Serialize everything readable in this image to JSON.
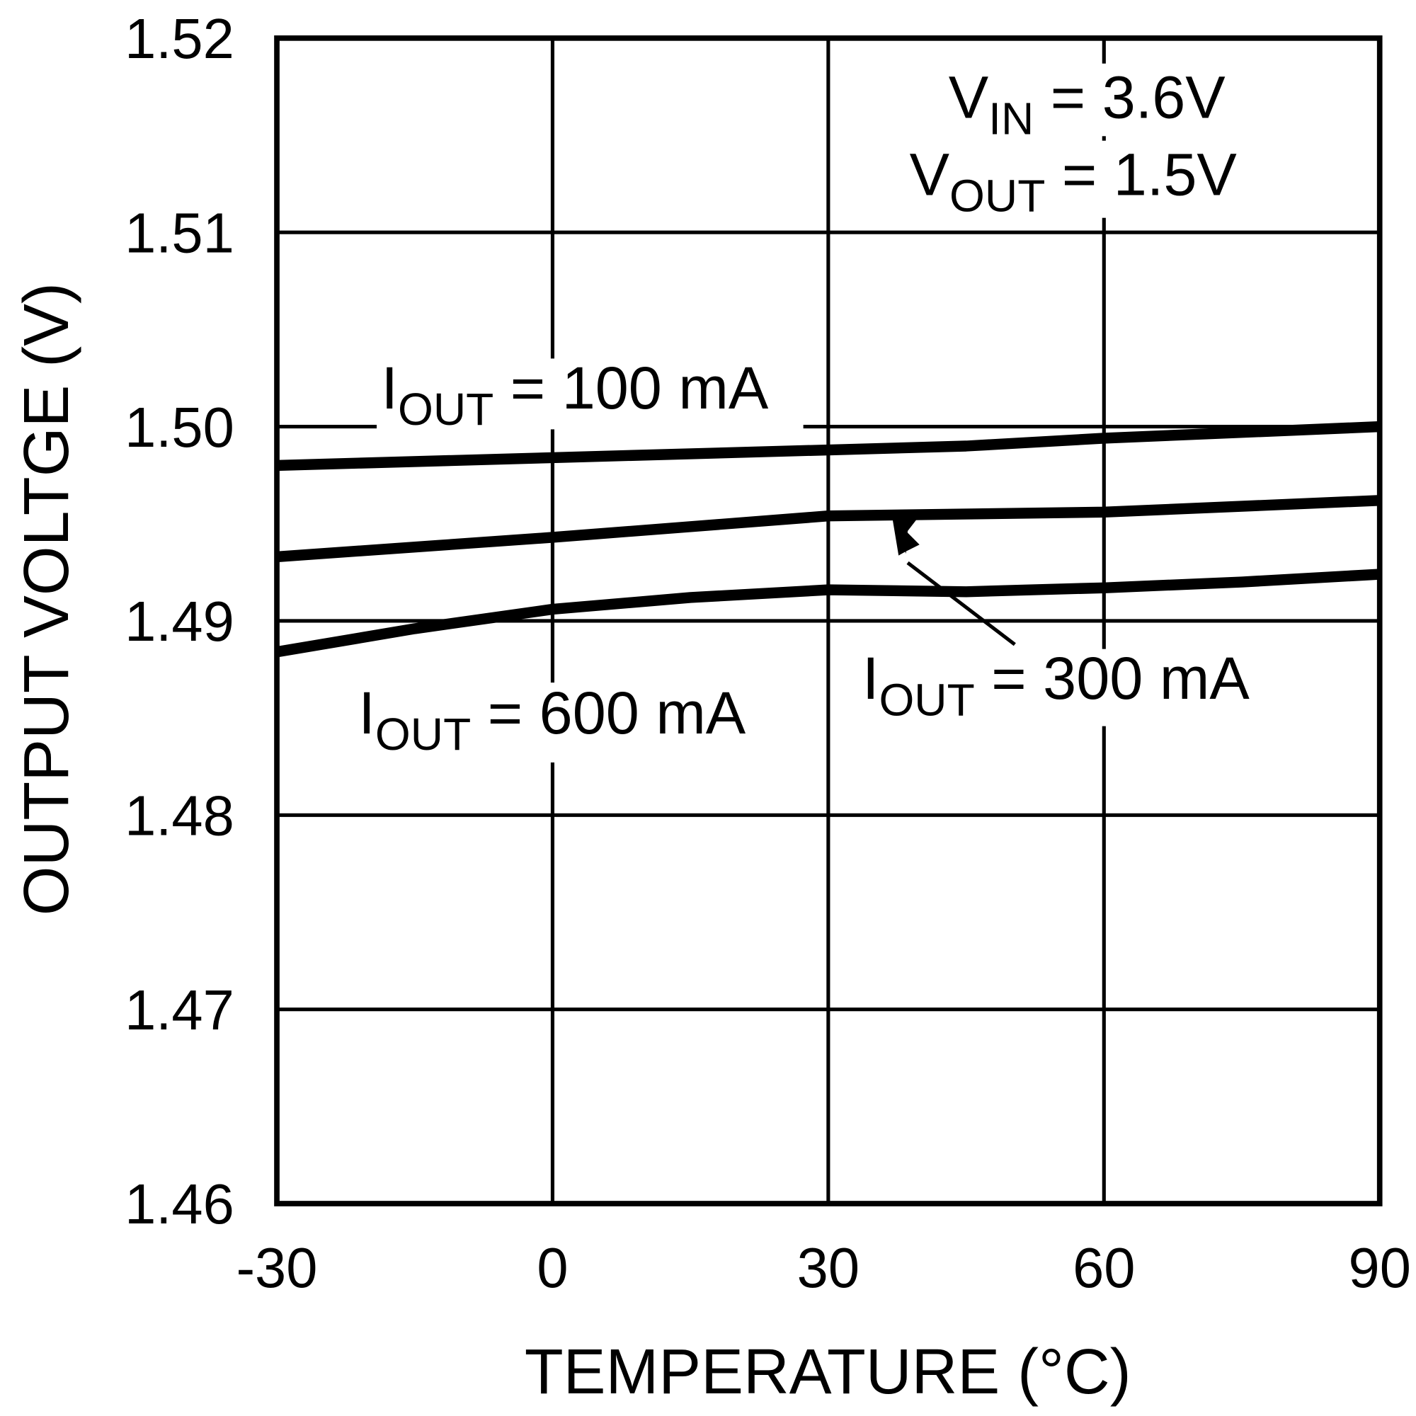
{
  "chart_data": {
    "type": "line",
    "title": "",
    "xlabel": "TEMPERATURE (°C)",
    "ylabel": "OUTPUT VOLTGE (V)",
    "xlim": [
      -30,
      90
    ],
    "ylim": [
      1.46,
      1.52
    ],
    "xticks": [
      "-30",
      "0",
      "30",
      "60",
      "90"
    ],
    "yticks": [
      "1.46",
      "1.47",
      "1.48",
      "1.49",
      "1.50",
      "1.51",
      "1.52"
    ],
    "grid": true,
    "series_color": "#000000",
    "conditions": {
      "vin": {
        "main": "V",
        "sub": "IN",
        "rest": " = 3.6V"
      },
      "vout": {
        "main": "V",
        "sub": "OUT",
        "rest": " = 1.5V"
      }
    },
    "series": [
      {
        "name": "I_OUT = 100 mA",
        "label": {
          "main": "I",
          "sub": "OUT",
          "rest": " = 100 mA"
        },
        "x": [
          -30,
          0,
          30,
          45,
          60,
          90
        ],
        "y": [
          1.498,
          1.4984,
          1.4988,
          1.499,
          1.4994,
          1.5
        ]
      },
      {
        "name": "I_OUT = 300 mA",
        "label": {
          "main": "I",
          "sub": "OUT",
          "rest": " = 300 mA"
        },
        "x": [
          -30,
          0,
          30,
          60,
          90
        ],
        "y": [
          1.4933,
          1.4943,
          1.4954,
          1.4956,
          1.4962
        ]
      },
      {
        "name": "I_OUT = 600 mA",
        "label": {
          "main": "I",
          "sub": "OUT",
          "rest": " = 600 mA"
        },
        "x": [
          -30,
          -15,
          0,
          15,
          30,
          45,
          60,
          75,
          90
        ],
        "y": [
          1.4884,
          1.4896,
          1.4906,
          1.4912,
          1.4916,
          1.4915,
          1.4917,
          1.492,
          1.4924
        ]
      }
    ]
  }
}
